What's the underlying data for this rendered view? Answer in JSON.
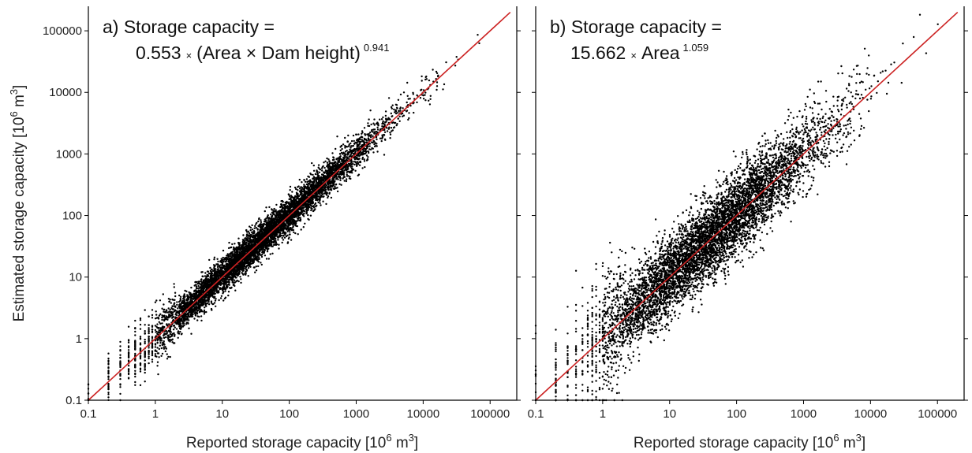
{
  "chart_data": [
    {
      "type": "scatter",
      "panel": "a",
      "title_line1": "a) Storage capacity =",
      "title_coef": "0.553",
      "title_mult": "×",
      "title_expr": "(Area × Dam height)",
      "title_exp": "0.941",
      "xlabel": "Reported storage capacity [10",
      "xlabel_sup": "6",
      "xlabel_mid": " m",
      "xlabel_sup2": "3",
      "xlabel_end": "]",
      "ylabel": "Estimated storage capacity [10",
      "ylabel_sup": "6",
      "ylabel_mid": " m",
      "ylabel_sup2": "3",
      "ylabel_end": "]",
      "x_scale": "log",
      "y_scale": "log",
      "xlim": [
        0.1,
        250000
      ],
      "ylim": [
        0.1,
        250000
      ],
      "x_ticks": [
        "0.1",
        "1",
        "10",
        "100",
        "1000",
        "10000",
        "100000"
      ],
      "y_ticks": [
        "0.1",
        "1",
        "10",
        "100",
        "1000",
        "10000",
        "100000"
      ],
      "reference_line": "1:1",
      "reference_color": "#cc2222",
      "point_color": "#000000",
      "scatter_spread_log10": 0.14,
      "points_summary": "dense cloud of ~7000 reservoirs along the 1:1 line from 0.1 to ~200000"
    },
    {
      "type": "scatter",
      "panel": "b",
      "title_line1": "b) Storage capacity =",
      "title_coef": "15.662",
      "title_mult": "×",
      "title_expr": "Area",
      "title_exp": "1.059",
      "xlabel": "Reported storage capacity [10",
      "xlabel_sup": "6",
      "xlabel_mid": " m",
      "xlabel_sup2": "3",
      "xlabel_end": "]",
      "x_scale": "log",
      "y_scale": "log",
      "xlim": [
        0.1,
        250000
      ],
      "ylim": [
        0.1,
        250000
      ],
      "x_ticks": [
        "0.1",
        "1",
        "10",
        "100",
        "1000",
        "10000",
        "100000"
      ],
      "reference_line": "1:1",
      "reference_color": "#cc2222",
      "point_color": "#000000",
      "scatter_spread_log10": 0.32,
      "points_summary": "wider cloud of ~7000 reservoirs along the 1:1 line from 0.1 to ~200000"
    }
  ]
}
